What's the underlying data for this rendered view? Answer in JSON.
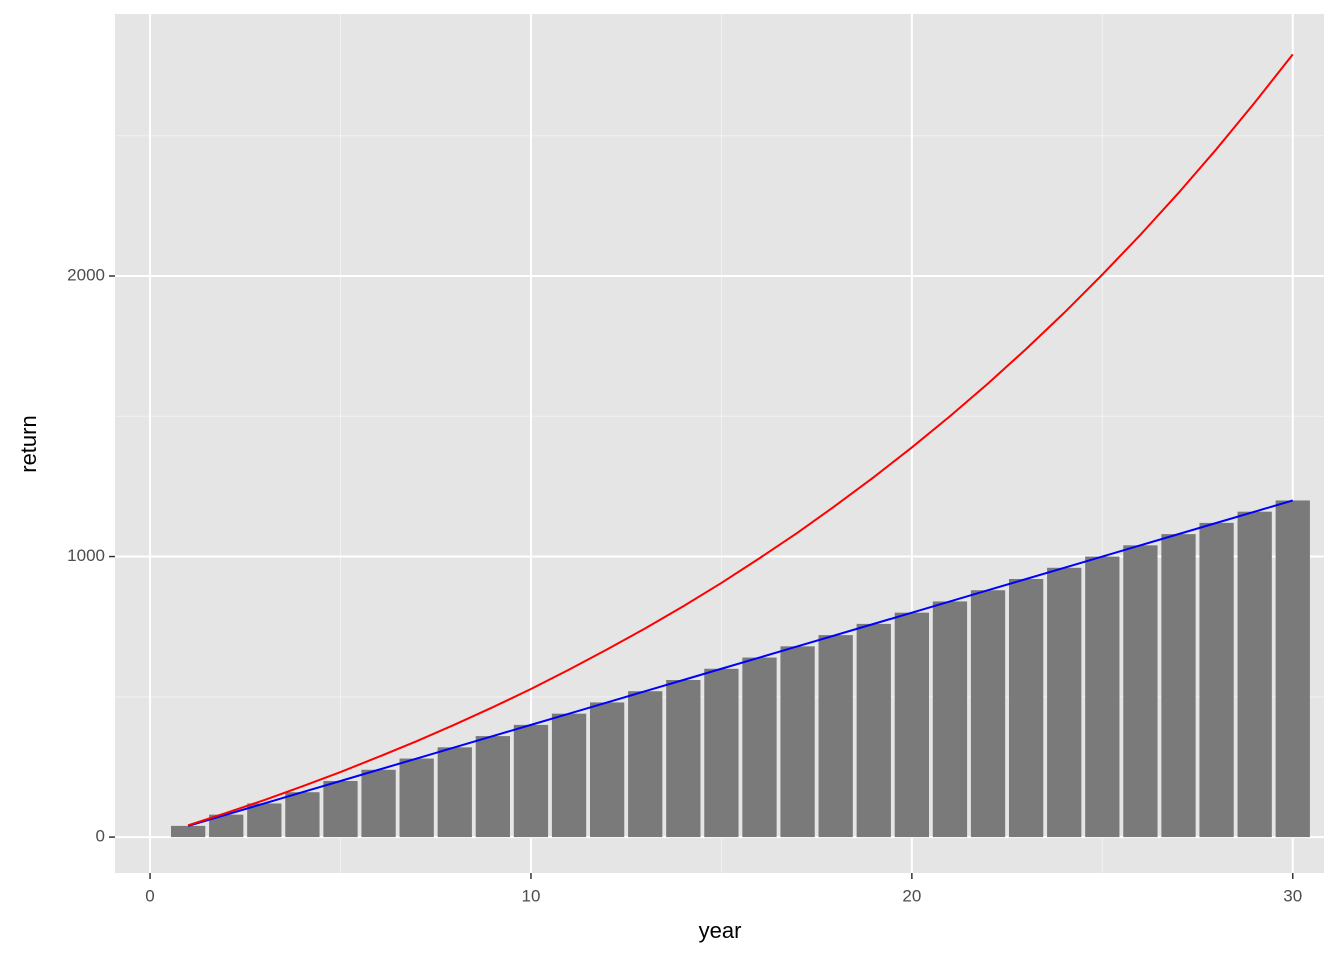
{
  "chart_data": {
    "type": "bar",
    "x_label": "year",
    "y_label": "return",
    "x": [
      1,
      2,
      3,
      4,
      5,
      6,
      7,
      8,
      9,
      10,
      11,
      12,
      13,
      14,
      15,
      16,
      17,
      18,
      19,
      20,
      21,
      22,
      23,
      24,
      25,
      26,
      27,
      28,
      29,
      30
    ],
    "series": [
      {
        "type": "bar",
        "color": "#7a7a7a",
        "bar_width": 0.9,
        "values": [
          40,
          80,
          120,
          160,
          200,
          240,
          280,
          320,
          360,
          400,
          440,
          480,
          520,
          560,
          600,
          640,
          680,
          720,
          760,
          800,
          840,
          880,
          920,
          960,
          1000,
          1040,
          1080,
          1120,
          1160,
          1200
        ]
      },
      {
        "type": "line",
        "color": "#0000ff",
        "values": [
          40,
          80,
          120,
          160,
          200,
          240,
          280,
          320,
          360,
          400,
          440,
          480,
          520,
          560,
          600,
          640,
          680,
          720,
          760,
          800,
          840,
          880,
          920,
          960,
          1000,
          1040,
          1080,
          1120,
          1160,
          1200
        ]
      },
      {
        "type": "line",
        "color": "#ff0000",
        "values": [
          42,
          86,
          132,
          181,
          232,
          286,
          342,
          401,
          463,
          528,
          597,
          669,
          744,
          823,
          906,
          994,
          1085,
          1182,
          1283,
          1389,
          1500,
          1617,
          1740,
          1869,
          2005,
          2147,
          2296,
          2453,
          2618,
          2790
        ]
      }
    ],
    "xlim": [
      -0.92,
      30.82
    ],
    "xticks": [
      0,
      10,
      20,
      30
    ],
    "x_minor_grid": [
      5,
      15,
      25
    ],
    "ylim": [
      -128,
      2934
    ],
    "yticks": [
      0,
      1000,
      2000
    ],
    "y_minor_grid": [
      500,
      1500,
      2500
    ],
    "grid": true
  }
}
